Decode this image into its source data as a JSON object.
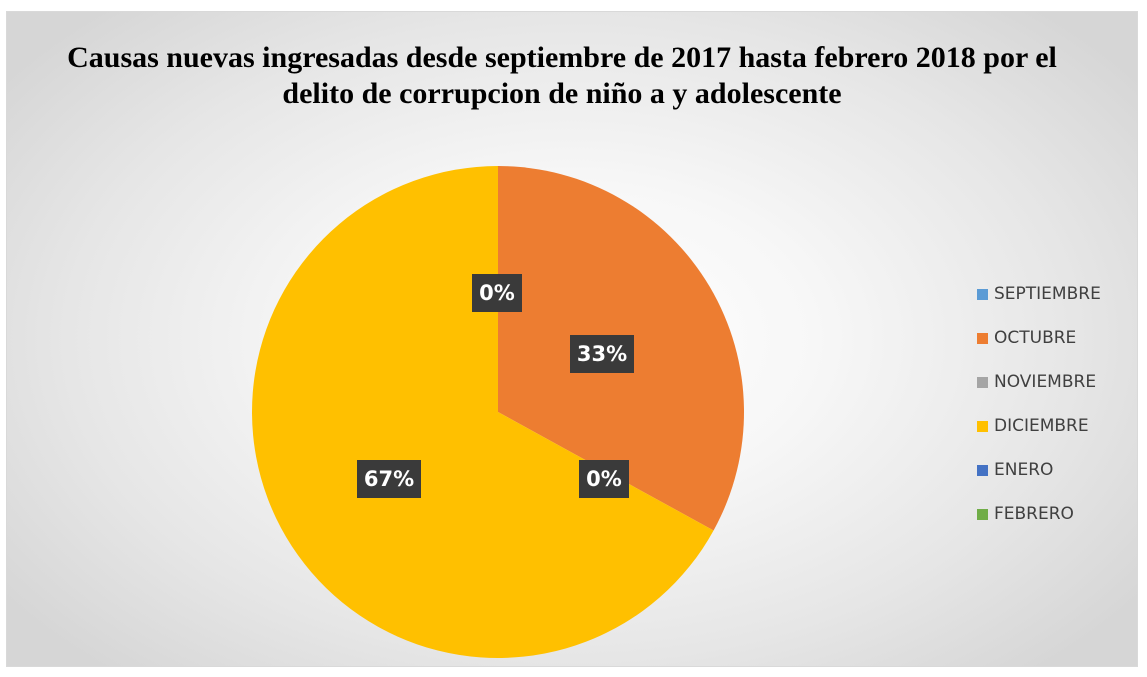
{
  "chart_data": {
    "type": "pie",
    "title": "Causas nuevas ingresadas desde septiembre de 2017 hasta febrero 2018 por el delito de corrupcion de niño a y adolescente",
    "categories": [
      "SEPTIEMBRE",
      "OCTUBRE",
      "NOVIEMBRE",
      "DICIEMBRE",
      "ENERO",
      "FEBRERO"
    ],
    "values": [
      0,
      33,
      0,
      67,
      0,
      0
    ],
    "data_labels": [
      "0%",
      "33%",
      "0%",
      "67%",
      "0%",
      "0%"
    ],
    "colors": [
      "#5b9bd5",
      "#ed7d31",
      "#a5a5a5",
      "#ffc000",
      "#4472c4",
      "#70ad47"
    ],
    "legend_position": "right",
    "start_angle": "12 o'clock",
    "direction": "clockwise"
  }
}
